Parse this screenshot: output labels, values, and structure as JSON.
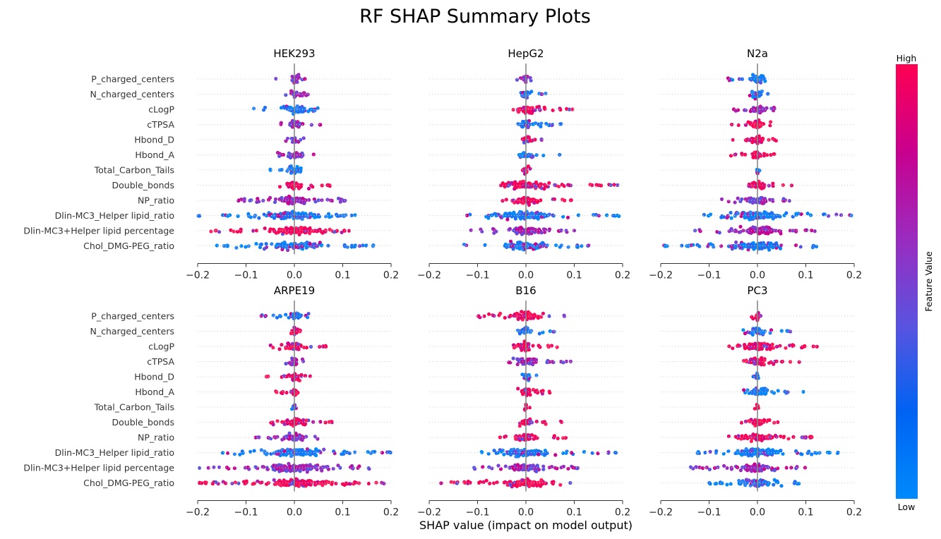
{
  "chart_data": {
    "type": "scatter",
    "subtype": "shap-beeswarm",
    "title": "RF SHAP Summary Plots",
    "xlabel": "SHAP value (impact on model output)",
    "xlim": [
      -0.2,
      0.2
    ],
    "xticks": [
      -0.2,
      -0.1,
      0.0,
      0.1,
      0.2
    ],
    "xtick_labels": [
      "−0.2",
      "−0.1",
      "0.0",
      "0.1",
      "0.2"
    ],
    "features": [
      "P_charged_centers",
      "N_charged_centers",
      "cLogP",
      "cTPSA",
      "Hbond_D",
      "Hbond_A",
      "Total_Carbon_Tails",
      "Double_bonds",
      "NP_ratio",
      "Dlin-MC3_Helper lipid_ratio",
      "Dlin-MC3+Helper lipid percentage",
      "Chol_DMG-PEG_ratio"
    ],
    "colorbar": {
      "label": "Feature Value",
      "high_label": "High",
      "low_label": "Low",
      "colors": [
        "#008afb",
        "#0063f3",
        "#5a53e0",
        "#9b2bbf",
        "#c9008e",
        "#ff0052"
      ]
    },
    "panels": [
      {
        "name": "HEK293",
        "ranges": [
          [
            -0.04,
            0.03,
            "m"
          ],
          [
            -0.02,
            0.03,
            "m"
          ],
          [
            -0.09,
            0.055,
            "b"
          ],
          [
            -0.04,
            0.055,
            "m"
          ],
          [
            -0.02,
            0.02,
            "m"
          ],
          [
            -0.04,
            0.05,
            "m"
          ],
          [
            -0.055,
            0.015,
            "b"
          ],
          [
            -0.03,
            0.08,
            "r"
          ],
          [
            -0.12,
            0.11,
            "m"
          ],
          [
            -0.2,
            0.14,
            "b"
          ],
          [
            -0.19,
            0.14,
            "r"
          ],
          [
            -0.165,
            0.165,
            "b"
          ]
        ]
      },
      {
        "name": "HepG2",
        "ranges": [
          [
            -0.02,
            0.015,
            "m"
          ],
          [
            -0.015,
            0.045,
            "b"
          ],
          [
            -0.035,
            0.1,
            "r"
          ],
          [
            -0.02,
            0.08,
            "b"
          ],
          [
            -0.01,
            0.04,
            "r"
          ],
          [
            -0.02,
            0.07,
            "b"
          ],
          [
            -0.025,
            0.01,
            "r"
          ],
          [
            -0.07,
            0.195,
            "r"
          ],
          [
            -0.06,
            0.11,
            "r"
          ],
          [
            -0.13,
            0.2,
            "b"
          ],
          [
            -0.12,
            0.1,
            "m"
          ],
          [
            -0.13,
            0.13,
            "b"
          ]
        ]
      },
      {
        "name": "N2a",
        "ranges": [
          [
            -0.065,
            0.025,
            "b"
          ],
          [
            -0.02,
            0.035,
            "b"
          ],
          [
            -0.05,
            0.065,
            "m"
          ],
          [
            -0.055,
            0.04,
            "r"
          ],
          [
            -0.055,
            0.04,
            "r"
          ],
          [
            -0.055,
            0.04,
            "r"
          ],
          [
            -0.005,
            0.005,
            "b"
          ],
          [
            -0.02,
            0.075,
            "r"
          ],
          [
            -0.075,
            0.075,
            "m"
          ],
          [
            -0.12,
            0.2,
            "b"
          ],
          [
            -0.13,
            0.12,
            "m"
          ],
          [
            -0.2,
            0.13,
            "b"
          ]
        ]
      },
      {
        "name": "ARPE19",
        "ranges": [
          [
            -0.08,
            0.03,
            "b"
          ],
          [
            -0.02,
            0.025,
            "r"
          ],
          [
            -0.05,
            0.075,
            "r"
          ],
          [
            -0.02,
            0.04,
            "m"
          ],
          [
            -0.065,
            0.035,
            "r"
          ],
          [
            -0.04,
            0.025,
            "r"
          ],
          [
            -0.005,
            0.005,
            "b"
          ],
          [
            -0.05,
            0.08,
            "r"
          ],
          [
            -0.09,
            0.06,
            "m"
          ],
          [
            -0.15,
            0.2,
            "b"
          ],
          [
            -0.2,
            0.16,
            "m"
          ],
          [
            -0.2,
            0.19,
            "r"
          ]
        ]
      },
      {
        "name": "B16",
        "ranges": [
          [
            -0.1,
            0.08,
            "r"
          ],
          [
            -0.02,
            0.06,
            "b"
          ],
          [
            -0.03,
            0.065,
            "r"
          ],
          [
            -0.045,
            0.095,
            "m"
          ],
          [
            -0.02,
            0.025,
            "b"
          ],
          [
            -0.025,
            0.055,
            "r"
          ],
          [
            -0.01,
            0.01,
            "r"
          ],
          [
            -0.02,
            0.08,
            "r"
          ],
          [
            -0.055,
            0.095,
            "r"
          ],
          [
            -0.1,
            0.19,
            "b"
          ],
          [
            -0.12,
            0.11,
            "m"
          ],
          [
            -0.185,
            0.1,
            "r"
          ]
        ]
      },
      {
        "name": "PC3",
        "ranges": [
          [
            -0.015,
            0.015,
            "r"
          ],
          [
            -0.03,
            0.07,
            "b"
          ],
          [
            -0.075,
            0.135,
            "r"
          ],
          [
            -0.03,
            0.095,
            "r"
          ],
          [
            -0.01,
            0.005,
            "b"
          ],
          [
            -0.035,
            0.095,
            "b"
          ],
          [
            -0.01,
            0.01,
            "r"
          ],
          [
            -0.04,
            0.045,
            "r"
          ],
          [
            -0.08,
            0.12,
            "r"
          ],
          [
            -0.13,
            0.2,
            "b"
          ],
          [
            -0.14,
            0.1,
            "m"
          ],
          [
            -0.1,
            0.105,
            "b"
          ]
        ]
      }
    ]
  }
}
